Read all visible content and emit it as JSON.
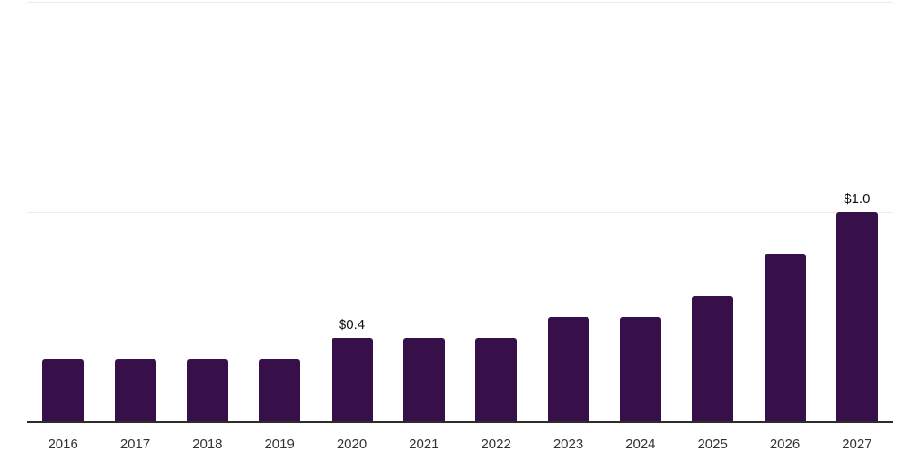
{
  "chart_data": {
    "type": "bar",
    "title": "",
    "xlabel": "",
    "ylabel": "",
    "categories": [
      "2016",
      "2017",
      "2018",
      "2019",
      "2020",
      "2021",
      "2022",
      "2023",
      "2024",
      "2025",
      "2026",
      "2027"
    ],
    "values": [
      0.3,
      0.3,
      0.3,
      0.3,
      0.4,
      0.4,
      0.4,
      0.5,
      0.5,
      0.6,
      0.8,
      1.0
    ],
    "data_labels": {
      "2020": "$0.4",
      "2027": "$1.0"
    },
    "ylim": [
      0,
      2
    ],
    "gridline_values": [
      1,
      2
    ],
    "grid": "horizontal-only",
    "legend": false,
    "colors": {
      "bar": "#37104a",
      "axis_line": "#2d2d2d",
      "gridline": "#ececec",
      "data_label": "#111111",
      "tick_label": "#333333",
      "background": "#ffffff"
    }
  }
}
